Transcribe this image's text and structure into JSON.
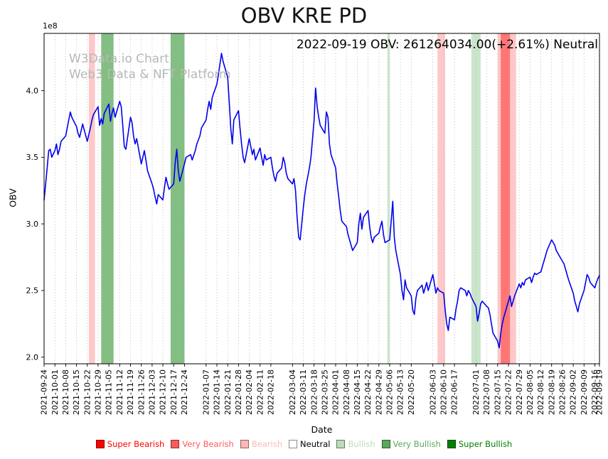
{
  "watermark": {
    "line1": "W3Data.io Chart",
    "line2": "Web3 Data & NFT Platform",
    "color": "#b5b9b5"
  },
  "chart_data": {
    "type": "line",
    "title": "OBV KRE PD",
    "subtitle": "2022-09-19 OBV: 261264034.00(+2.61%) Neutral",
    "xlabel": "Date",
    "ylabel": "OBV",
    "y_offset_label": "1e8",
    "unit_multiplier": 100000000,
    "ylim": [
      1.95,
      4.43
    ],
    "y_ticks": [
      2.0,
      2.5,
      3.0,
      3.5,
      4.0
    ],
    "grid": "vertical-dotted",
    "legend_position": "bottom",
    "line_color": "#0000ee",
    "band_opacity": 0.75,
    "x_span_days": 360,
    "x_tick_days": [
      0,
      7,
      14,
      21,
      28,
      35,
      42,
      49,
      56,
      63,
      70,
      77,
      84,
      91,
      105,
      112,
      119,
      126,
      133,
      140,
      147,
      161,
      168,
      175,
      182,
      189,
      196,
      203,
      210,
      217,
      224,
      231,
      238,
      252,
      259,
      266,
      280,
      287,
      294,
      301,
      308,
      315,
      322,
      329,
      336,
      343,
      350,
      357,
      360
    ],
    "x_tick_labels": [
      "2021-09-24",
      "2021-10-01",
      "2021-10-08",
      "2021-10-15",
      "2021-10-22",
      "2021-10-29",
      "2021-11-05",
      "2021-11-12",
      "2021-11-19",
      "2021-11-26",
      "2021-12-03",
      "2021-12-10",
      "2021-12-17",
      "2021-12-24",
      "2022-01-07",
      "2022-01-14",
      "2022-01-21",
      "2022-01-28",
      "2022-02-04",
      "2022-02-11",
      "2022-02-18",
      "2022-03-04",
      "2022-03-11",
      "2022-03-18",
      "2022-03-25",
      "2022-04-01",
      "2022-04-08",
      "2022-04-15",
      "2022-04-22",
      "2022-04-29",
      "2022-05-06",
      "2022-05-13",
      "2022-05-20",
      "2022-06-03",
      "2022-06-10",
      "2022-06-17",
      "2022-07-01",
      "2022-07-08",
      "2022-07-15",
      "2022-07-22",
      "2022-07-29",
      "2022-08-05",
      "2022-08-12",
      "2022-08-19",
      "2022-08-26",
      "2022-09-02",
      "2022-09-09",
      "2022-09-16",
      "2022-09-19"
    ],
    "series": [
      [
        0,
        3.18
      ],
      [
        1,
        3.3
      ],
      [
        2,
        3.42
      ],
      [
        3,
        3.55
      ],
      [
        4,
        3.56
      ],
      [
        5,
        3.5
      ],
      [
        7,
        3.55
      ],
      [
        8,
        3.6
      ],
      [
        9,
        3.52
      ],
      [
        10,
        3.56
      ],
      [
        11,
        3.62
      ],
      [
        14,
        3.66
      ],
      [
        15,
        3.72
      ],
      [
        16,
        3.78
      ],
      [
        17,
        3.84
      ],
      [
        18,
        3.8
      ],
      [
        21,
        3.73
      ],
      [
        22,
        3.68
      ],
      [
        23,
        3.65
      ],
      [
        24,
        3.7
      ],
      [
        25,
        3.75
      ],
      [
        28,
        3.62
      ],
      [
        29,
        3.67
      ],
      [
        30,
        3.72
      ],
      [
        31,
        3.78
      ],
      [
        32,
        3.82
      ],
      [
        35,
        3.88
      ],
      [
        36,
        3.74
      ],
      [
        37,
        3.79
      ],
      [
        38,
        3.75
      ],
      [
        39,
        3.83
      ],
      [
        42,
        3.9
      ],
      [
        43,
        3.77
      ],
      [
        44,
        3.83
      ],
      [
        45,
        3.87
      ],
      [
        46,
        3.8
      ],
      [
        49,
        3.92
      ],
      [
        50,
        3.88
      ],
      [
        51,
        3.74
      ],
      [
        52,
        3.58
      ],
      [
        53,
        3.56
      ],
      [
        56,
        3.8
      ],
      [
        57,
        3.76
      ],
      [
        58,
        3.66
      ],
      [
        59,
        3.6
      ],
      [
        60,
        3.64
      ],
      [
        63,
        3.45
      ],
      [
        64,
        3.5
      ],
      [
        65,
        3.55
      ],
      [
        66,
        3.48
      ],
      [
        67,
        3.4
      ],
      [
        70,
        3.3
      ],
      [
        71,
        3.26
      ],
      [
        72,
        3.2
      ],
      [
        73,
        3.15
      ],
      [
        74,
        3.22
      ],
      [
        77,
        3.18
      ],
      [
        78,
        3.27
      ],
      [
        79,
        3.35
      ],
      [
        80,
        3.3
      ],
      [
        81,
        3.26
      ],
      [
        84,
        3.3
      ],
      [
        85,
        3.46
      ],
      [
        86,
        3.56
      ],
      [
        87,
        3.4
      ],
      [
        88,
        3.32
      ],
      [
        91,
        3.45
      ],
      [
        92,
        3.5
      ],
      [
        95,
        3.52
      ],
      [
        96,
        3.48
      ],
      [
        98,
        3.55
      ],
      [
        99,
        3.6
      ],
      [
        101,
        3.66
      ],
      [
        102,
        3.72
      ],
      [
        105,
        3.78
      ],
      [
        106,
        3.86
      ],
      [
        107,
        3.92
      ],
      [
        108,
        3.86
      ],
      [
        109,
        3.95
      ],
      [
        112,
        4.05
      ],
      [
        113,
        4.12
      ],
      [
        114,
        4.2
      ],
      [
        115,
        4.28
      ],
      [
        116,
        4.22
      ],
      [
        119,
        4.1
      ],
      [
        120,
        3.92
      ],
      [
        121,
        3.72
      ],
      [
        122,
        3.6
      ],
      [
        123,
        3.78
      ],
      [
        126,
        3.85
      ],
      [
        127,
        3.72
      ],
      [
        128,
        3.6
      ],
      [
        129,
        3.5
      ],
      [
        130,
        3.46
      ],
      [
        133,
        3.64
      ],
      [
        134,
        3.58
      ],
      [
        135,
        3.52
      ],
      [
        136,
        3.56
      ],
      [
        137,
        3.48
      ],
      [
        140,
        3.57
      ],
      [
        141,
        3.5
      ],
      [
        142,
        3.44
      ],
      [
        143,
        3.52
      ],
      [
        144,
        3.48
      ],
      [
        147,
        3.5
      ],
      [
        148,
        3.42
      ],
      [
        149,
        3.36
      ],
      [
        150,
        3.32
      ],
      [
        151,
        3.38
      ],
      [
        154,
        3.42
      ],
      [
        155,
        3.5
      ],
      [
        156,
        3.46
      ],
      [
        157,
        3.38
      ],
      [
        158,
        3.34
      ],
      [
        161,
        3.3
      ],
      [
        162,
        3.34
      ],
      [
        163,
        3.25
      ],
      [
        164,
        3.05
      ],
      [
        165,
        2.9
      ],
      [
        166,
        2.88
      ],
      [
        168,
        3.12
      ],
      [
        169,
        3.22
      ],
      [
        170,
        3.3
      ],
      [
        171,
        3.36
      ],
      [
        172,
        3.42
      ],
      [
        173,
        3.5
      ],
      [
        175,
        3.78
      ],
      [
        176,
        4.02
      ],
      [
        177,
        3.88
      ],
      [
        178,
        3.8
      ],
      [
        179,
        3.74
      ],
      [
        182,
        3.68
      ],
      [
        183,
        3.84
      ],
      [
        184,
        3.8
      ],
      [
        185,
        3.6
      ],
      [
        186,
        3.52
      ],
      [
        189,
        3.42
      ],
      [
        190,
        3.3
      ],
      [
        191,
        3.2
      ],
      [
        192,
        3.1
      ],
      [
        193,
        3.02
      ],
      [
        196,
        2.98
      ],
      [
        197,
        2.92
      ],
      [
        198,
        2.88
      ],
      [
        199,
        2.84
      ],
      [
        200,
        2.8
      ],
      [
        203,
        2.86
      ],
      [
        204,
        3.0
      ],
      [
        205,
        3.08
      ],
      [
        206,
        2.96
      ],
      [
        207,
        3.05
      ],
      [
        210,
        3.1
      ],
      [
        211,
        2.98
      ],
      [
        212,
        2.9
      ],
      [
        213,
        2.86
      ],
      [
        214,
        2.9
      ],
      [
        217,
        2.93
      ],
      [
        218,
        2.98
      ],
      [
        219,
        3.02
      ],
      [
        220,
        2.92
      ],
      [
        221,
        2.86
      ],
      [
        224,
        2.88
      ],
      [
        225,
        3.02
      ],
      [
        226,
        3.17
      ],
      [
        227,
        2.9
      ],
      [
        228,
        2.8
      ],
      [
        231,
        2.62
      ],
      [
        232,
        2.5
      ],
      [
        233,
        2.43
      ],
      [
        234,
        2.58
      ],
      [
        235,
        2.52
      ],
      [
        238,
        2.46
      ],
      [
        239,
        2.35
      ],
      [
        240,
        2.32
      ],
      [
        241,
        2.44
      ],
      [
        242,
        2.5
      ],
      [
        245,
        2.54
      ],
      [
        246,
        2.48
      ],
      [
        247,
        2.52
      ],
      [
        248,
        2.56
      ],
      [
        249,
        2.5
      ],
      [
        252,
        2.62
      ],
      [
        253,
        2.55
      ],
      [
        254,
        2.48
      ],
      [
        255,
        2.52
      ],
      [
        256,
        2.5
      ],
      [
        259,
        2.48
      ],
      [
        260,
        2.35
      ],
      [
        261,
        2.25
      ],
      [
        262,
        2.2
      ],
      [
        263,
        2.3
      ],
      [
        266,
        2.28
      ],
      [
        267,
        2.36
      ],
      [
        268,
        2.42
      ],
      [
        269,
        2.5
      ],
      [
        270,
        2.52
      ],
      [
        273,
        2.5
      ],
      [
        274,
        2.46
      ],
      [
        275,
        2.5
      ],
      [
        276,
        2.48
      ],
      [
        277,
        2.45
      ],
      [
        280,
        2.38
      ],
      [
        281,
        2.27
      ],
      [
        282,
        2.33
      ],
      [
        283,
        2.4
      ],
      [
        284,
        2.42
      ],
      [
        287,
        2.38
      ],
      [
        288,
        2.37
      ],
      [
        289,
        2.32
      ],
      [
        290,
        2.25
      ],
      [
        291,
        2.18
      ],
      [
        294,
        2.12
      ],
      [
        295,
        2.07
      ],
      [
        296,
        2.18
      ],
      [
        297,
        2.25
      ],
      [
        298,
        2.3
      ],
      [
        301,
        2.42
      ],
      [
        302,
        2.46
      ],
      [
        303,
        2.38
      ],
      [
        304,
        2.42
      ],
      [
        305,
        2.46
      ],
      [
        308,
        2.55
      ],
      [
        309,
        2.52
      ],
      [
        310,
        2.56
      ],
      [
        311,
        2.54
      ],
      [
        312,
        2.58
      ],
      [
        315,
        2.6
      ],
      [
        316,
        2.56
      ],
      [
        317,
        2.6
      ],
      [
        318,
        2.63
      ],
      [
        319,
        2.62
      ],
      [
        322,
        2.64
      ],
      [
        323,
        2.68
      ],
      [
        324,
        2.72
      ],
      [
        325,
        2.76
      ],
      [
        326,
        2.8
      ],
      [
        329,
        2.88
      ],
      [
        330,
        2.86
      ],
      [
        331,
        2.84
      ],
      [
        332,
        2.8
      ],
      [
        333,
        2.78
      ],
      [
        336,
        2.72
      ],
      [
        337,
        2.7
      ],
      [
        338,
        2.66
      ],
      [
        339,
        2.62
      ],
      [
        340,
        2.58
      ],
      [
        343,
        2.48
      ],
      [
        344,
        2.42
      ],
      [
        345,
        2.38
      ],
      [
        346,
        2.34
      ],
      [
        347,
        2.4
      ],
      [
        350,
        2.5
      ],
      [
        351,
        2.56
      ],
      [
        352,
        2.62
      ],
      [
        353,
        2.6
      ],
      [
        354,
        2.56
      ],
      [
        357,
        2.52
      ],
      [
        358,
        2.56
      ],
      [
        359,
        2.59
      ],
      [
        360,
        2.6126
      ]
    ],
    "signal_colors": {
      "super_bearish": "#ff0000",
      "very_bearish": "#ff5a5a",
      "bearish": "#ffb6b6",
      "neutral": "#ffffff",
      "bullish": "#b8ddb8",
      "very_bullish": "#5aa85a",
      "super_bullish": "#008000"
    },
    "bands": [
      {
        "start": 29,
        "end": 33,
        "signal": "bearish"
      },
      {
        "start": 37,
        "end": 45,
        "signal": "very_bullish"
      },
      {
        "start": 82,
        "end": 91,
        "signal": "very_bullish"
      },
      {
        "start": 222.5,
        "end": 224,
        "signal": "bullish"
      },
      {
        "start": 255,
        "end": 260,
        "signal": "bearish"
      },
      {
        "start": 277,
        "end": 283,
        "signal": "bullish"
      },
      {
        "start": 294,
        "end": 306,
        "signal": "bearish"
      },
      {
        "start": 296,
        "end": 302,
        "signal": "very_bearish"
      }
    ],
    "legend": [
      {
        "label": "Super Bearish",
        "signal": "super_bearish"
      },
      {
        "label": "Very Bearish",
        "signal": "very_bearish"
      },
      {
        "label": "Bearish",
        "signal": "bearish"
      },
      {
        "label": "Neutral",
        "signal": "neutral"
      },
      {
        "label": "Bullish",
        "signal": "bullish"
      },
      {
        "label": "Very Bullish",
        "signal": "very_bullish"
      },
      {
        "label": "Super Bullish",
        "signal": "super_bullish"
      }
    ]
  }
}
